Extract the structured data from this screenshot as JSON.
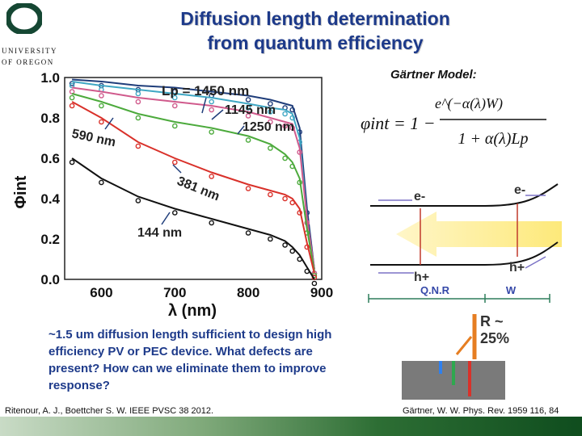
{
  "logo": {
    "line1": "UNIVERSITY",
    "line2": "OF OREGON",
    "color": "#154733"
  },
  "title": {
    "line1": "Diffusion length determination",
    "line2": "from quantum efficiency"
  },
  "chart_data": {
    "type": "scatter",
    "xlabel": "λ (nm)",
    "ylabel": "Φint",
    "xlim": [
      550,
      900
    ],
    "ylim": [
      0.0,
      1.0
    ],
    "x_ticks": [
      600,
      700,
      800,
      900
    ],
    "y_ticks": [
      0.0,
      0.2,
      0.4,
      0.6,
      0.8,
      1.0
    ],
    "annotations": [
      "Lp = 1450 nm",
      "1145 nm",
      "1250 nm",
      "590 nm",
      "381 nm",
      "144 nm"
    ],
    "series": [
      {
        "name": "1450 nm",
        "color": "#1f3d7a",
        "x": [
          560,
          600,
          650,
          700,
          750,
          800,
          830,
          850,
          860,
          870,
          880,
          890
        ],
        "y": [
          0.99,
          0.98,
          0.96,
          0.95,
          0.93,
          0.91,
          0.89,
          0.87,
          0.86,
          0.75,
          0.35,
          0.05
        ]
      },
      {
        "name": "1250 nm",
        "color": "#3fa7c4",
        "x": [
          560,
          600,
          650,
          700,
          750,
          800,
          830,
          850,
          860,
          870,
          880,
          890
        ],
        "y": [
          0.98,
          0.96,
          0.94,
          0.92,
          0.9,
          0.87,
          0.85,
          0.84,
          0.82,
          0.7,
          0.3,
          0.05
        ]
      },
      {
        "name": "1145 nm",
        "color": "#d05a8c",
        "x": [
          560,
          600,
          650,
          700,
          750,
          800,
          830,
          850,
          860,
          870,
          880,
          890
        ],
        "y": [
          0.95,
          0.93,
          0.9,
          0.88,
          0.86,
          0.83,
          0.8,
          0.78,
          0.77,
          0.65,
          0.3,
          0.05
        ]
      },
      {
        "name": "590 nm",
        "color": "#4caa3c",
        "x": [
          560,
          600,
          650,
          700,
          750,
          800,
          830,
          850,
          860,
          870,
          880,
          890
        ],
        "y": [
          0.92,
          0.88,
          0.82,
          0.78,
          0.75,
          0.71,
          0.67,
          0.62,
          0.58,
          0.5,
          0.25,
          0.04
        ]
      },
      {
        "name": "381 nm",
        "color": "#d9312a",
        "x": [
          560,
          600,
          650,
          700,
          750,
          800,
          830,
          850,
          860,
          870,
          880,
          890
        ],
        "y": [
          0.88,
          0.8,
          0.68,
          0.6,
          0.53,
          0.47,
          0.44,
          0.42,
          0.4,
          0.35,
          0.18,
          0.03
        ]
      },
      {
        "name": "144 nm",
        "color": "#111111",
        "x": [
          560,
          600,
          650,
          700,
          750,
          800,
          830,
          850,
          860,
          870,
          880,
          890
        ],
        "y": [
          0.6,
          0.5,
          0.41,
          0.35,
          0.3,
          0.25,
          0.22,
          0.19,
          0.16,
          0.12,
          0.06,
          0.0
        ]
      }
    ]
  },
  "gartner": {
    "title": "Gärtner Model:",
    "phi": "φint = 1 −",
    "numerator": "e^(−α(λ)W)",
    "denominator": "1 + α(λ)Lp"
  },
  "band": {
    "e_left": "e-",
    "e_right": "e-",
    "h_left": "h+",
    "h_right": "h+",
    "qnr": "Q.N.R",
    "w": "W"
  },
  "reflection": {
    "line1": "R ~",
    "line2": "25%"
  },
  "bottom_text": "~1.5 um diffusion length sufficient to design high efficiency PV or PEC device. What defects are present? How can we eliminate them to improve response?",
  "cite_left": "Ritenour, A. J., Boettcher S. W. IEEE PVSC 38 2012.",
  "cite_right": "Gärtner, W. W. Phys. Rev. 1959 116, 84"
}
